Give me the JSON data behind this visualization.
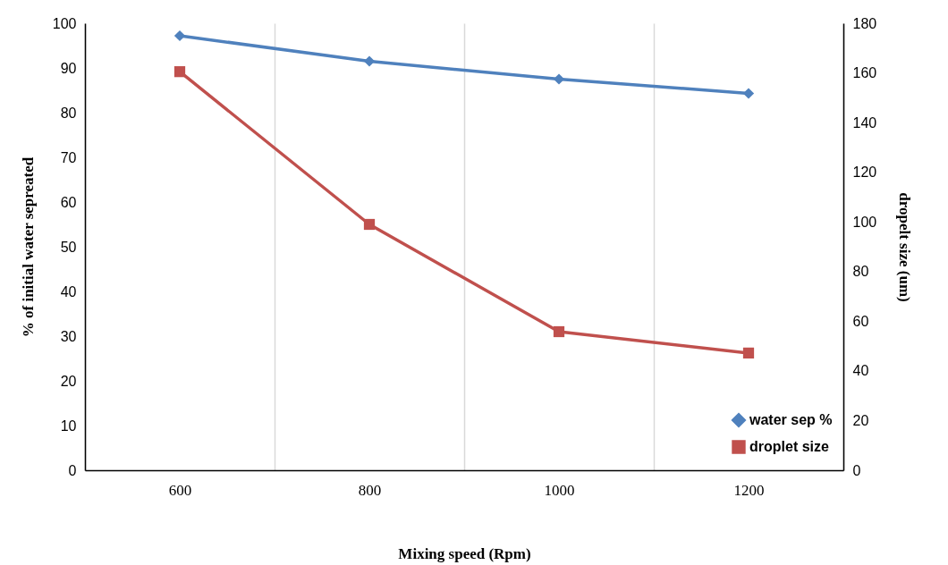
{
  "chart_data": {
    "type": "line",
    "xlabel": "Mixing speed (Rpm)",
    "ylabel": "% of initial water sepreated",
    "y2label": "dropelt size (um)",
    "categories": [
      "600",
      "800",
      "1000",
      "1200"
    ],
    "series": [
      {
        "name": "water sep %",
        "color": "#4f81bd",
        "marker": "diamond",
        "values": [
          97.2,
          91.5,
          87.5,
          84.3
        ]
      },
      {
        "name": "droplet size",
        "color": "#c0504d",
        "marker": "square",
        "axis": "y2",
        "values": [
          160.5,
          99,
          55.8,
          47.2
        ]
      }
    ],
    "ylim": [
      0,
      100
    ],
    "yticks": [
      0,
      10,
      20,
      30,
      40,
      50,
      60,
      70,
      80,
      90,
      100
    ],
    "y2lim": [
      0,
      180
    ],
    "y2ticks": [
      0,
      20,
      40,
      60,
      80,
      100,
      120,
      140,
      160,
      180
    ],
    "grid": "x",
    "legend": "bottom right"
  }
}
